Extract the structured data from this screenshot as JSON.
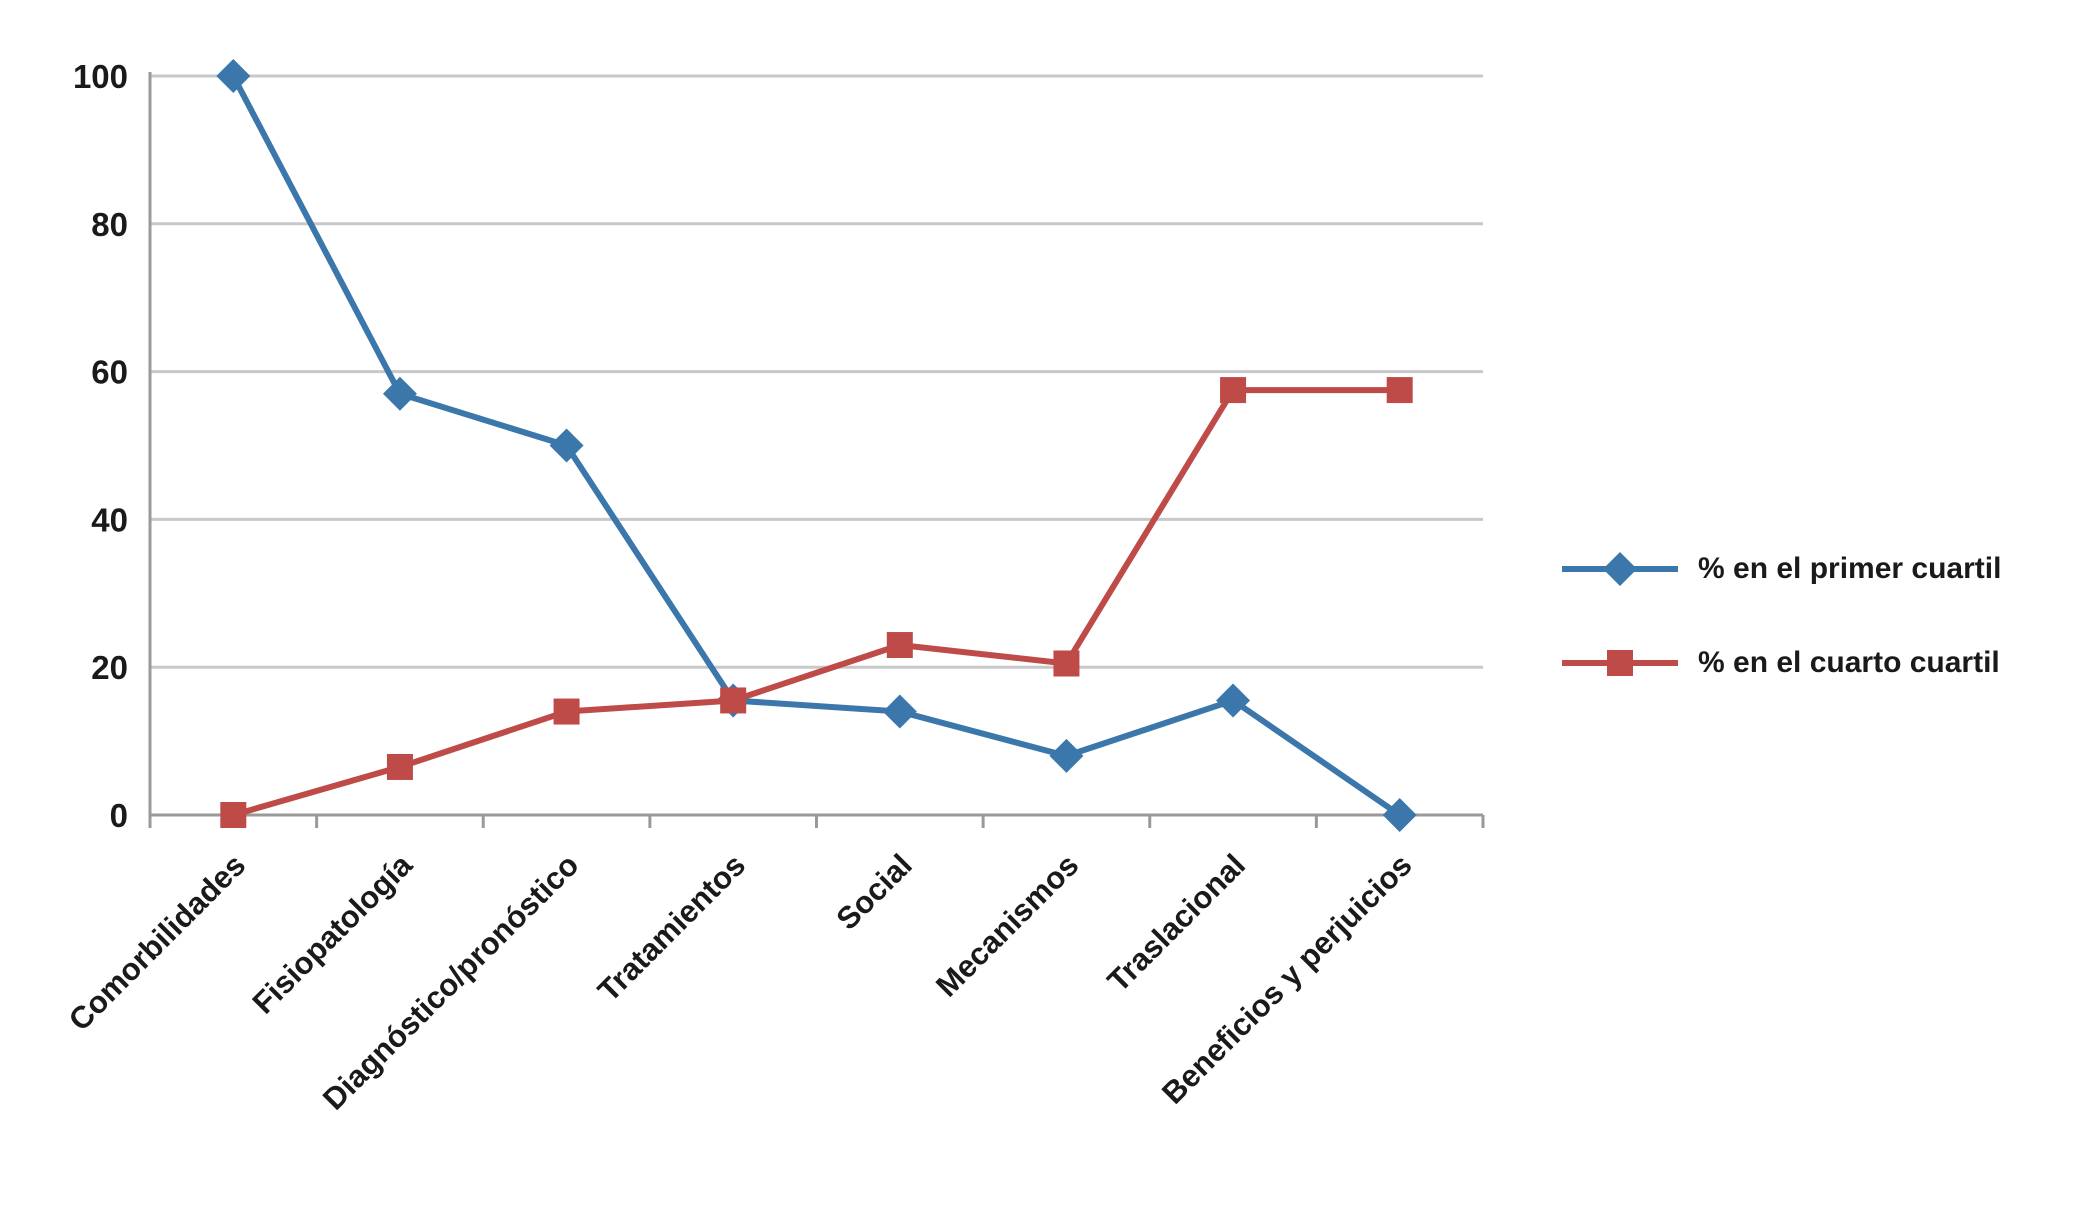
{
  "chart_data": {
    "type": "line",
    "categories": [
      "Comorbilidades",
      "Fisiopatología",
      "Diagnóstico/pronóstico",
      "Tratamientos",
      "Social",
      "Mecanismos",
      "Traslacional",
      "Beneficios y perjuicios"
    ],
    "series": [
      {
        "name": "% en el primer cuartil",
        "color": "#3C77AC",
        "marker": "diamond",
        "values": [
          100,
          57,
          50,
          15.5,
          14,
          8,
          15.5,
          0
        ]
      },
      {
        "name": "% en el cuarto cuartil",
        "color": "#BE4B48",
        "marker": "square",
        "values": [
          0,
          6.5,
          14,
          15.5,
          23,
          20.5,
          57.5,
          57.5
        ]
      }
    ],
    "title": "",
    "xlabel": "",
    "ylabel": "",
    "ylim": [
      0,
      100
    ],
    "yticks": [
      0,
      20,
      40,
      60,
      80,
      100
    ],
    "grid": true,
    "legend_position": "right"
  },
  "colors": {
    "gridline": "#c8c8c8",
    "axis": "#9a9a9a",
    "tick_label": "#1a1a1a"
  }
}
